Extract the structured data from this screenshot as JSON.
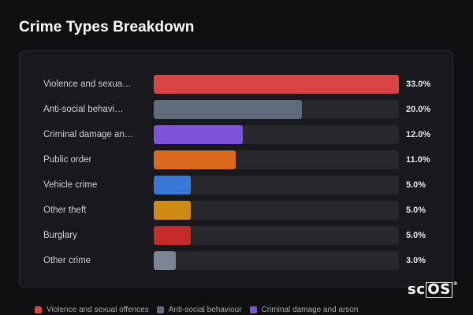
{
  "header": {
    "title": "Crime Types Breakdown"
  },
  "chart_data": {
    "type": "bar",
    "orientation": "horizontal",
    "categories": [
      "Violence and sexua…",
      "Anti-social behavi…",
      "Criminal damage an…",
      "Public order",
      "Vehicle crime",
      "Other theft",
      "Burglary",
      "Other crime"
    ],
    "values": [
      33.0,
      20.0,
      12.0,
      11.0,
      5.0,
      5.0,
      5.0,
      3.0
    ],
    "value_labels": [
      "33.0%",
      "20.0%",
      "12.0%",
      "11.0%",
      "5.0%",
      "5.0%",
      "5.0%",
      "3.0%"
    ],
    "colors": [
      "#d94545",
      "#5f6a7a",
      "#7b52d8",
      "#d96a1f",
      "#3a78d8",
      "#cf8a14",
      "#c62a2a",
      "#7c8594"
    ],
    "xlim": [
      0,
      33.0
    ],
    "grid": false,
    "legend_position": "bottom"
  },
  "legend": {
    "items": [
      {
        "label": "Violence and sexual offences",
        "color": "#d94545"
      },
      {
        "label": "Anti-social behaviour",
        "color": "#5f6a7a"
      },
      {
        "label": "Criminal damage and arson",
        "color": "#7b52d8"
      }
    ]
  },
  "logo": {
    "text_left": "sc",
    "text_box": "OS",
    "reg": "®"
  }
}
